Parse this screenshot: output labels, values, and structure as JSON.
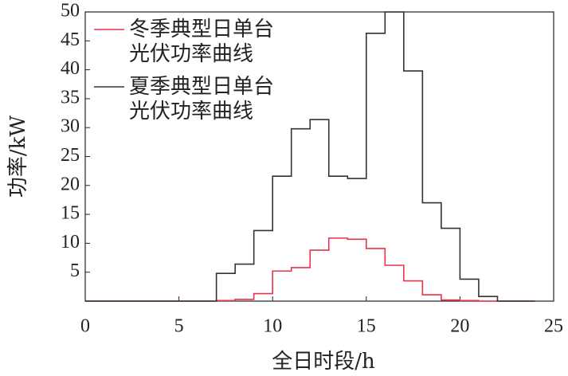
{
  "chart_data": {
    "type": "step",
    "x_label": "全日时段/h",
    "y_label": "功率/kW",
    "x": [
      0,
      1,
      2,
      3,
      4,
      5,
      6,
      7,
      8,
      9,
      10,
      11,
      12,
      13,
      14,
      15,
      16,
      17,
      18,
      19,
      20,
      21,
      22,
      23
    ],
    "series": [
      {
        "name": "冬季典型日单台光伏功率曲线",
        "color": "#e8334a",
        "values": [
          0,
          0,
          0,
          0,
          0,
          0,
          0,
          0.1,
          0.3,
          1.3,
          5.2,
          5.8,
          8.8,
          10.9,
          10.7,
          9.1,
          6.2,
          3.5,
          1.1,
          0.2,
          0.1,
          0,
          0,
          0
        ]
      },
      {
        "name": "夏季典型日单台光伏功率曲线",
        "color": "#333333",
        "values": [
          0,
          0,
          0,
          0,
          0,
          0,
          0,
          4.8,
          6.4,
          12.2,
          21.6,
          29.8,
          31.4,
          21.6,
          21.2,
          46.3,
          50,
          39.8,
          17,
          12.6,
          3.8,
          0.8,
          0,
          0
        ]
      }
    ],
    "xlim": [
      0,
      25
    ],
    "xticks": [
      0,
      5,
      10,
      15,
      20,
      25
    ],
    "ylim": [
      0,
      50
    ],
    "yticks": [
      5,
      10,
      15,
      20,
      25,
      30,
      35,
      40,
      45,
      50
    ],
    "legend": "top-left"
  }
}
